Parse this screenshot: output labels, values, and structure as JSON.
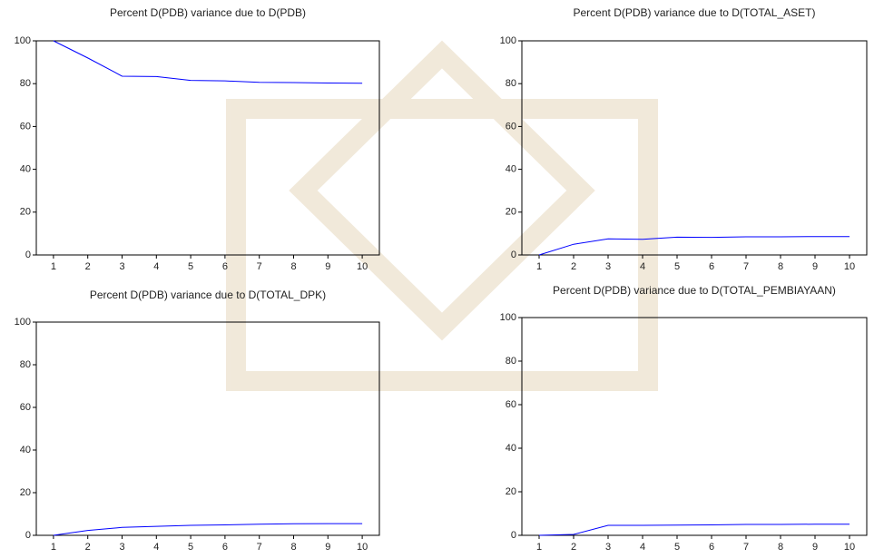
{
  "chart_data": [
    {
      "type": "line",
      "title": "Percent D(PDB) variance due to D(PDB)",
      "x": [
        1,
        2,
        3,
        4,
        5,
        6,
        7,
        8,
        9,
        10
      ],
      "xlim": [
        0.5,
        10.5
      ],
      "xticks": [
        1,
        2,
        3,
        4,
        5,
        6,
        7,
        8,
        9,
        10
      ],
      "ylim": [
        0,
        100
      ],
      "yticks": [
        0,
        20,
        40,
        60,
        80,
        100
      ],
      "series": [
        {
          "color": "#0000ff",
          "values": [
            100,
            92,
            83.5,
            83.3,
            81.5,
            81.3,
            80.6,
            80.5,
            80.3,
            80.2
          ]
        }
      ]
    },
    {
      "type": "line",
      "title": "Percent D(PDB) variance due to D(TOTAL_ASET)",
      "x": [
        1,
        2,
        3,
        4,
        5,
        6,
        7,
        8,
        9,
        10
      ],
      "xlim": [
        0.5,
        10.5
      ],
      "xticks": [
        1,
        2,
        3,
        4,
        5,
        6,
        7,
        8,
        9,
        10
      ],
      "ylim": [
        0,
        100
      ],
      "yticks": [
        0,
        20,
        40,
        60,
        80,
        100
      ],
      "series": [
        {
          "color": "#0000ff",
          "values": [
            0,
            5,
            7.5,
            7.3,
            8.3,
            8.2,
            8.5,
            8.5,
            8.6,
            8.6
          ]
        }
      ]
    },
    {
      "type": "line",
      "title": "Percent D(PDB) variance due to D(TOTAL_DPK)",
      "x": [
        1,
        2,
        3,
        4,
        5,
        6,
        7,
        8,
        9,
        10
      ],
      "xlim": [
        0.5,
        10.5
      ],
      "xticks": [
        1,
        2,
        3,
        4,
        5,
        6,
        7,
        8,
        9,
        10
      ],
      "ylim": [
        0,
        100
      ],
      "yticks": [
        0,
        20,
        40,
        60,
        80,
        100
      ],
      "series": [
        {
          "color": "#0000ff",
          "values": [
            0,
            2.3,
            3.7,
            4.2,
            4.7,
            4.9,
            5.2,
            5.4,
            5.5,
            5.5
          ]
        }
      ]
    },
    {
      "type": "line",
      "title": "Percent D(PDB) variance due to D(TOTAL_PEMBIAYAAN)",
      "x": [
        1,
        2,
        3,
        4,
        5,
        6,
        7,
        8,
        9,
        10
      ],
      "xlim": [
        0.5,
        10.5
      ],
      "xticks": [
        1,
        2,
        3,
        4,
        5,
        6,
        7,
        8,
        9,
        10
      ],
      "ylim": [
        0,
        100
      ],
      "yticks": [
        0,
        20,
        40,
        60,
        80,
        100
      ],
      "series": [
        {
          "color": "#0000ff",
          "values": [
            0,
            0.4,
            4.6,
            4.6,
            4.7,
            4.8,
            5.0,
            5.0,
            5.1,
            5.1
          ]
        }
      ]
    }
  ]
}
